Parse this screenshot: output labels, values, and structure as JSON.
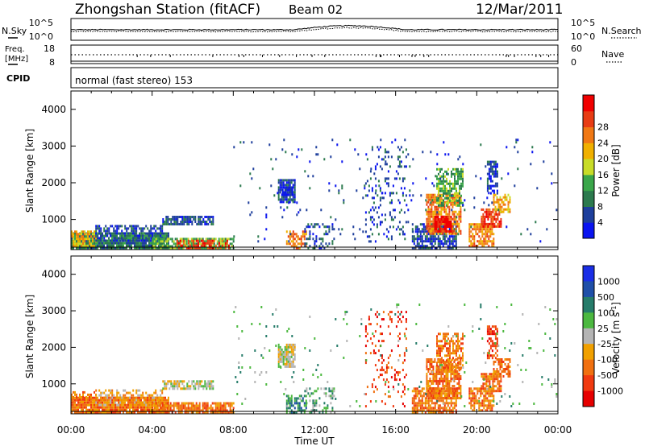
{
  "header": {
    "station": "Zhongshan Station (fitACF)",
    "beam": "Beam 02",
    "date": "12/Mar/2011"
  },
  "strip_labels": {
    "nsky": "N.Sky",
    "nsearch": "N.Search",
    "freq_line1": "Freq.",
    "freq_line2": "[MHz]",
    "nave": "Nave",
    "cpid": "CPID",
    "cpid_value": "normal (fast stereo) 153"
  },
  "strip_ticks": {
    "noise_left": [
      "10^5",
      "10^0"
    ],
    "noise_right": [
      "10^5",
      "10^0"
    ],
    "freq_left": [
      "18",
      "8"
    ],
    "nave_right": [
      "60",
      "0"
    ]
  },
  "x_axis": {
    "label": "Time UT",
    "ticks": [
      "00:00",
      "04:00",
      "08:00",
      "12:00",
      "16:00",
      "20:00",
      "00:00"
    ]
  },
  "colors": {
    "power": [
      "#0a14f0",
      "#1e3f9c",
      "#2c7a4e",
      "#3aa64a",
      "#c8dc28",
      "#f0b000",
      "#f07814",
      "#e83c14",
      "#f00000"
    ],
    "velocity": [
      "#1a2ee6",
      "#1f4fa8",
      "#267c6a",
      "#4cb840",
      "#b4b4b4",
      "#f0a000",
      "#f07010",
      "#f03a10",
      "#e60000"
    ]
  },
  "chart_data": [
    {
      "type": "heatmap",
      "panel": "power",
      "xlabel": "",
      "ylabel": "Slant Range [km]",
      "xlim": [
        0,
        24
      ],
      "ylim": [
        180,
        4500
      ],
      "yticks": [
        "1000",
        "2000",
        "3000",
        "4000"
      ],
      "colorbar_label": "Power [dB]",
      "colorbar_ticks": [
        "4",
        "8",
        "12",
        "16",
        "20",
        "24",
        "28"
      ],
      "regions": [
        {
          "t0": 0.0,
          "t1": 4.8,
          "r0": 200,
          "r1": 650,
          "c": 2,
          "d": 0.9
        },
        {
          "t0": 0.0,
          "t1": 1.2,
          "r0": 300,
          "r1": 700,
          "c": 5,
          "d": 0.7
        },
        {
          "t0": 1.2,
          "t1": 4.5,
          "r0": 400,
          "r1": 850,
          "c": 1,
          "d": 0.55
        },
        {
          "t0": 4.0,
          "t1": 8.0,
          "r0": 200,
          "r1": 500,
          "c": 3,
          "d": 0.8
        },
        {
          "t0": 5.2,
          "t1": 7.8,
          "r0": 250,
          "r1": 450,
          "c": 7,
          "d": 0.6
        },
        {
          "t0": 4.5,
          "t1": 7.0,
          "r0": 900,
          "r1": 1100,
          "c": 1,
          "d": 0.7
        },
        {
          "t0": 10.2,
          "t1": 11.0,
          "r0": 1500,
          "r1": 2100,
          "c": 1,
          "d": 0.85
        },
        {
          "t0": 10.4,
          "t1": 10.9,
          "r0": 1650,
          "r1": 1900,
          "c": 0,
          "d": 0.8
        },
        {
          "t0": 10.6,
          "t1": 11.6,
          "r0": 200,
          "r1": 700,
          "c": 6,
          "d": 0.55
        },
        {
          "t0": 11.5,
          "t1": 13.0,
          "r0": 200,
          "r1": 900,
          "c": 1,
          "d": 0.3
        },
        {
          "t0": 14.5,
          "t1": 16.5,
          "r0": 400,
          "r1": 3000,
          "c": 1,
          "d": 0.13
        },
        {
          "t0": 16.8,
          "t1": 19.0,
          "r0": 200,
          "r1": 900,
          "c": 1,
          "d": 0.7
        },
        {
          "t0": 17.5,
          "t1": 19.2,
          "r0": 600,
          "r1": 1700,
          "c": 6,
          "d": 0.75
        },
        {
          "t0": 17.9,
          "t1": 18.7,
          "r0": 700,
          "r1": 1100,
          "c": 8,
          "d": 0.85
        },
        {
          "t0": 18.0,
          "t1": 19.3,
          "r0": 1400,
          "r1": 2400,
          "c": 3,
          "d": 0.6
        },
        {
          "t0": 19.6,
          "t1": 20.8,
          "r0": 300,
          "r1": 900,
          "c": 6,
          "d": 0.7
        },
        {
          "t0": 20.2,
          "t1": 21.2,
          "r0": 800,
          "r1": 1300,
          "c": 7,
          "d": 0.75
        },
        {
          "t0": 20.5,
          "t1": 21.0,
          "r0": 1700,
          "r1": 2600,
          "c": 1,
          "d": 0.6
        },
        {
          "t0": 20.8,
          "t1": 21.6,
          "r0": 1200,
          "r1": 1700,
          "c": 5,
          "d": 0.6
        },
        {
          "t0": 8.0,
          "t1": 24.0,
          "r0": 400,
          "r1": 3200,
          "c": 1,
          "d": 0.02
        }
      ]
    },
    {
      "type": "heatmap",
      "panel": "velocity",
      "xlabel": "Time UT",
      "ylabel": "Slant Range [km]",
      "xlim": [
        0,
        24
      ],
      "ylim": [
        180,
        4500
      ],
      "yticks": [
        "1000",
        "2000",
        "3000",
        "4000"
      ],
      "colorbar_label": "Velocity [m s^-1]",
      "colorbar_ticks": [
        "1000",
        "500",
        "100",
        "25",
        "-25",
        "-100",
        "-500",
        "-1000"
      ],
      "regions": [
        {
          "t0": 0.0,
          "t1": 4.8,
          "r0": 200,
          "r1": 650,
          "c": 6,
          "d": 0.9
        },
        {
          "t0": 0.0,
          "t1": 1.2,
          "r0": 500,
          "r1": 800,
          "c": 6,
          "d": 0.5
        },
        {
          "t0": 1.2,
          "t1": 4.5,
          "r0": 400,
          "r1": 850,
          "c": 5,
          "d": 0.45
        },
        {
          "t0": 4.0,
          "t1": 8.0,
          "r0": 200,
          "r1": 500,
          "c": 6,
          "d": 0.8
        },
        {
          "t0": 4.5,
          "t1": 7.0,
          "r0": 850,
          "r1": 1100,
          "c": 4,
          "d": 0.75
        },
        {
          "t0": 10.2,
          "t1": 11.0,
          "r0": 1500,
          "r1": 2100,
          "c": 4,
          "d": 0.8
        },
        {
          "t0": 10.6,
          "t1": 11.6,
          "r0": 200,
          "r1": 700,
          "c": 2,
          "d": 0.55
        },
        {
          "t0": 11.5,
          "t1": 13.0,
          "r0": 200,
          "r1": 900,
          "c": 3,
          "d": 0.3
        },
        {
          "t0": 14.5,
          "t1": 16.5,
          "r0": 400,
          "r1": 3000,
          "c": 7,
          "d": 0.12
        },
        {
          "t0": 16.8,
          "t1": 19.0,
          "r0": 200,
          "r1": 900,
          "c": 6,
          "d": 0.75
        },
        {
          "t0": 17.5,
          "t1": 19.2,
          "r0": 600,
          "r1": 1700,
          "c": 6,
          "d": 0.75
        },
        {
          "t0": 18.0,
          "t1": 19.3,
          "r0": 1400,
          "r1": 2400,
          "c": 6,
          "d": 0.55
        },
        {
          "t0": 19.6,
          "t1": 20.8,
          "r0": 300,
          "r1": 900,
          "c": 6,
          "d": 0.7
        },
        {
          "t0": 20.2,
          "t1": 21.2,
          "r0": 800,
          "r1": 1300,
          "c": 6,
          "d": 0.75
        },
        {
          "t0": 20.5,
          "t1": 21.0,
          "r0": 1700,
          "r1": 2600,
          "c": 7,
          "d": 0.55
        },
        {
          "t0": 20.8,
          "t1": 21.6,
          "r0": 1200,
          "r1": 1700,
          "c": 6,
          "d": 0.6
        },
        {
          "t0": 8.0,
          "t1": 24.0,
          "r0": 400,
          "r1": 3200,
          "c": 3,
          "d": 0.02
        }
      ]
    }
  ]
}
